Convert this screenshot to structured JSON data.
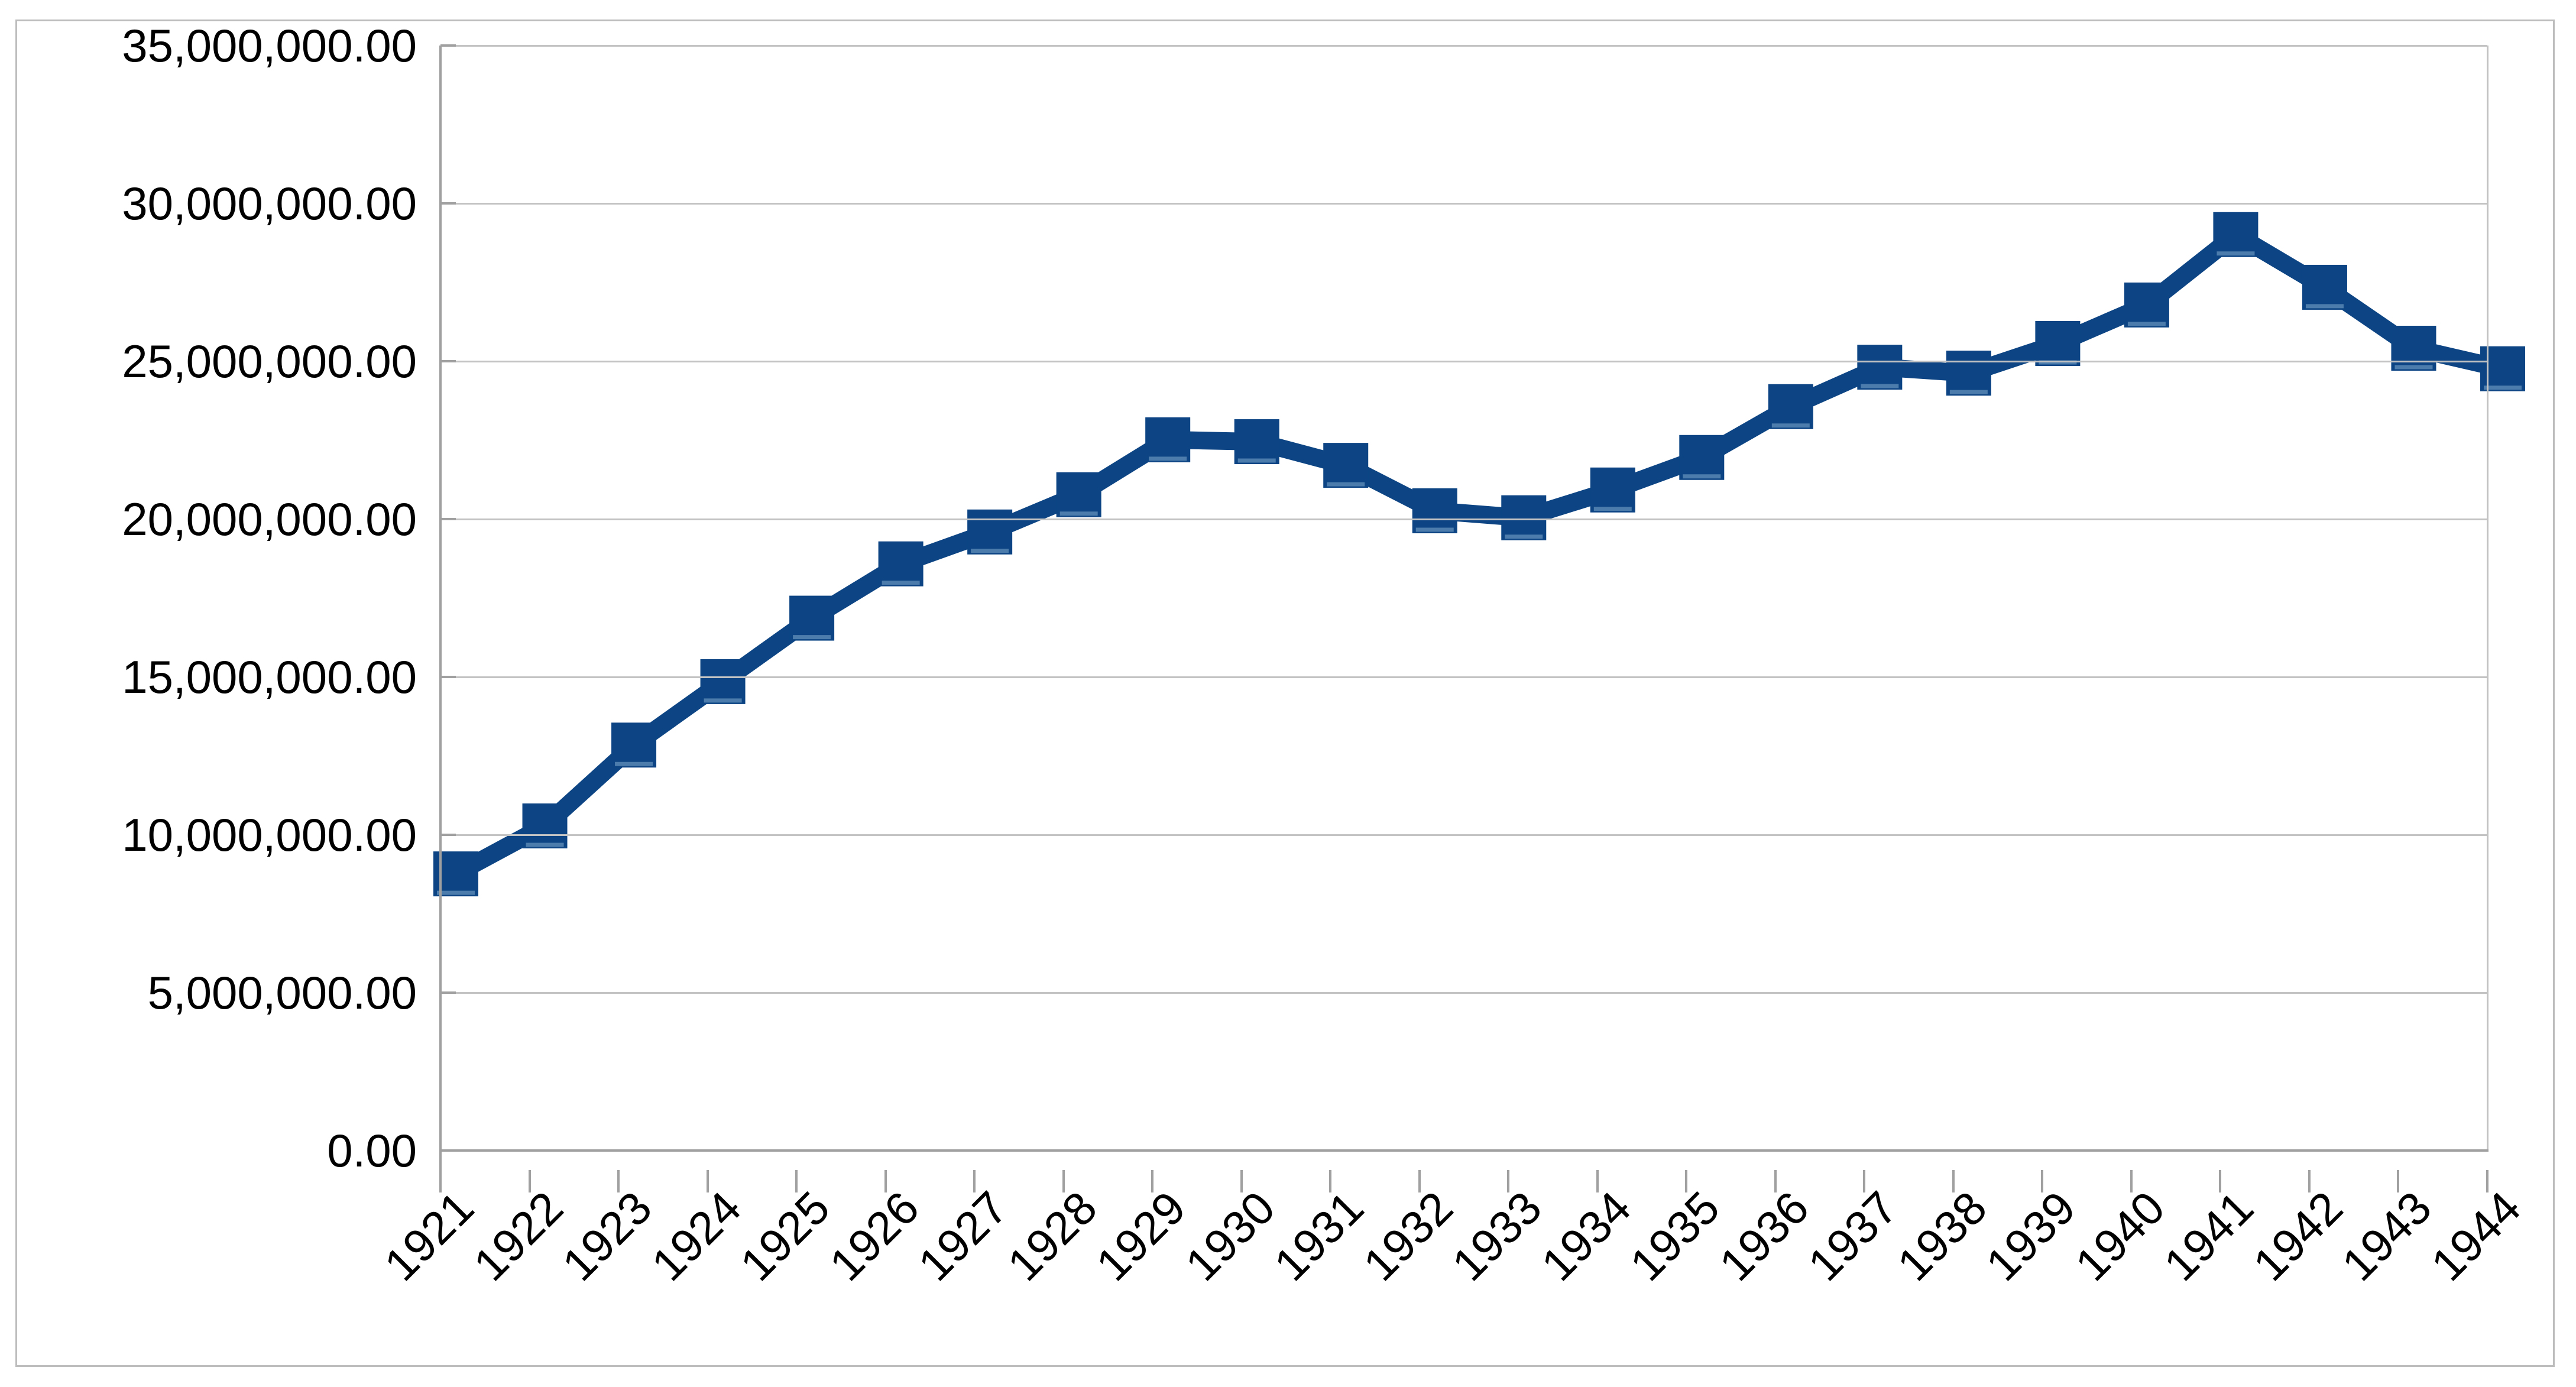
{
  "chart_data": {
    "type": "line",
    "title": "",
    "xlabel": "",
    "ylabel": "",
    "x": [
      "1921",
      "1922",
      "1923",
      "1924",
      "1925",
      "1926",
      "1927",
      "1928",
      "1929",
      "1930",
      "1931",
      "1932",
      "1933",
      "1934",
      "1935",
      "1936",
      "1937",
      "1938",
      "1939",
      "1940",
      "1941",
      "1942",
      "1943",
      "1944"
    ],
    "values": [
      9380000,
      10900000,
      13460000,
      15470000,
      17480000,
      19200000,
      20210000,
      21390000,
      23130000,
      23070000,
      22320000,
      20880000,
      20660000,
      21540000,
      22570000,
      24180000,
      25430000,
      25240000,
      26180000,
      27400000,
      29630000,
      27960000,
      26030000,
      25380000
    ],
    "ylim": [
      0,
      35000000
    ],
    "y_tick_interval": 5000000,
    "y_tick_labels": [
      "0.00",
      "5,000,000.00",
      "10,000,000.00",
      "15,000,000.00",
      "20,000,000.00",
      "25,000,000.00",
      "30,000,000.00",
      "35,000,000.00"
    ],
    "grid": "horizontal",
    "legend": "none",
    "marker": "square",
    "series_color": "#0d4584",
    "marker_highlight_color": "#4c7cab",
    "gridline_color": "#c3c3c3",
    "axis_color": "#a0a0a0",
    "frame_color": "#bdbdbd",
    "text_color": "#000000"
  }
}
